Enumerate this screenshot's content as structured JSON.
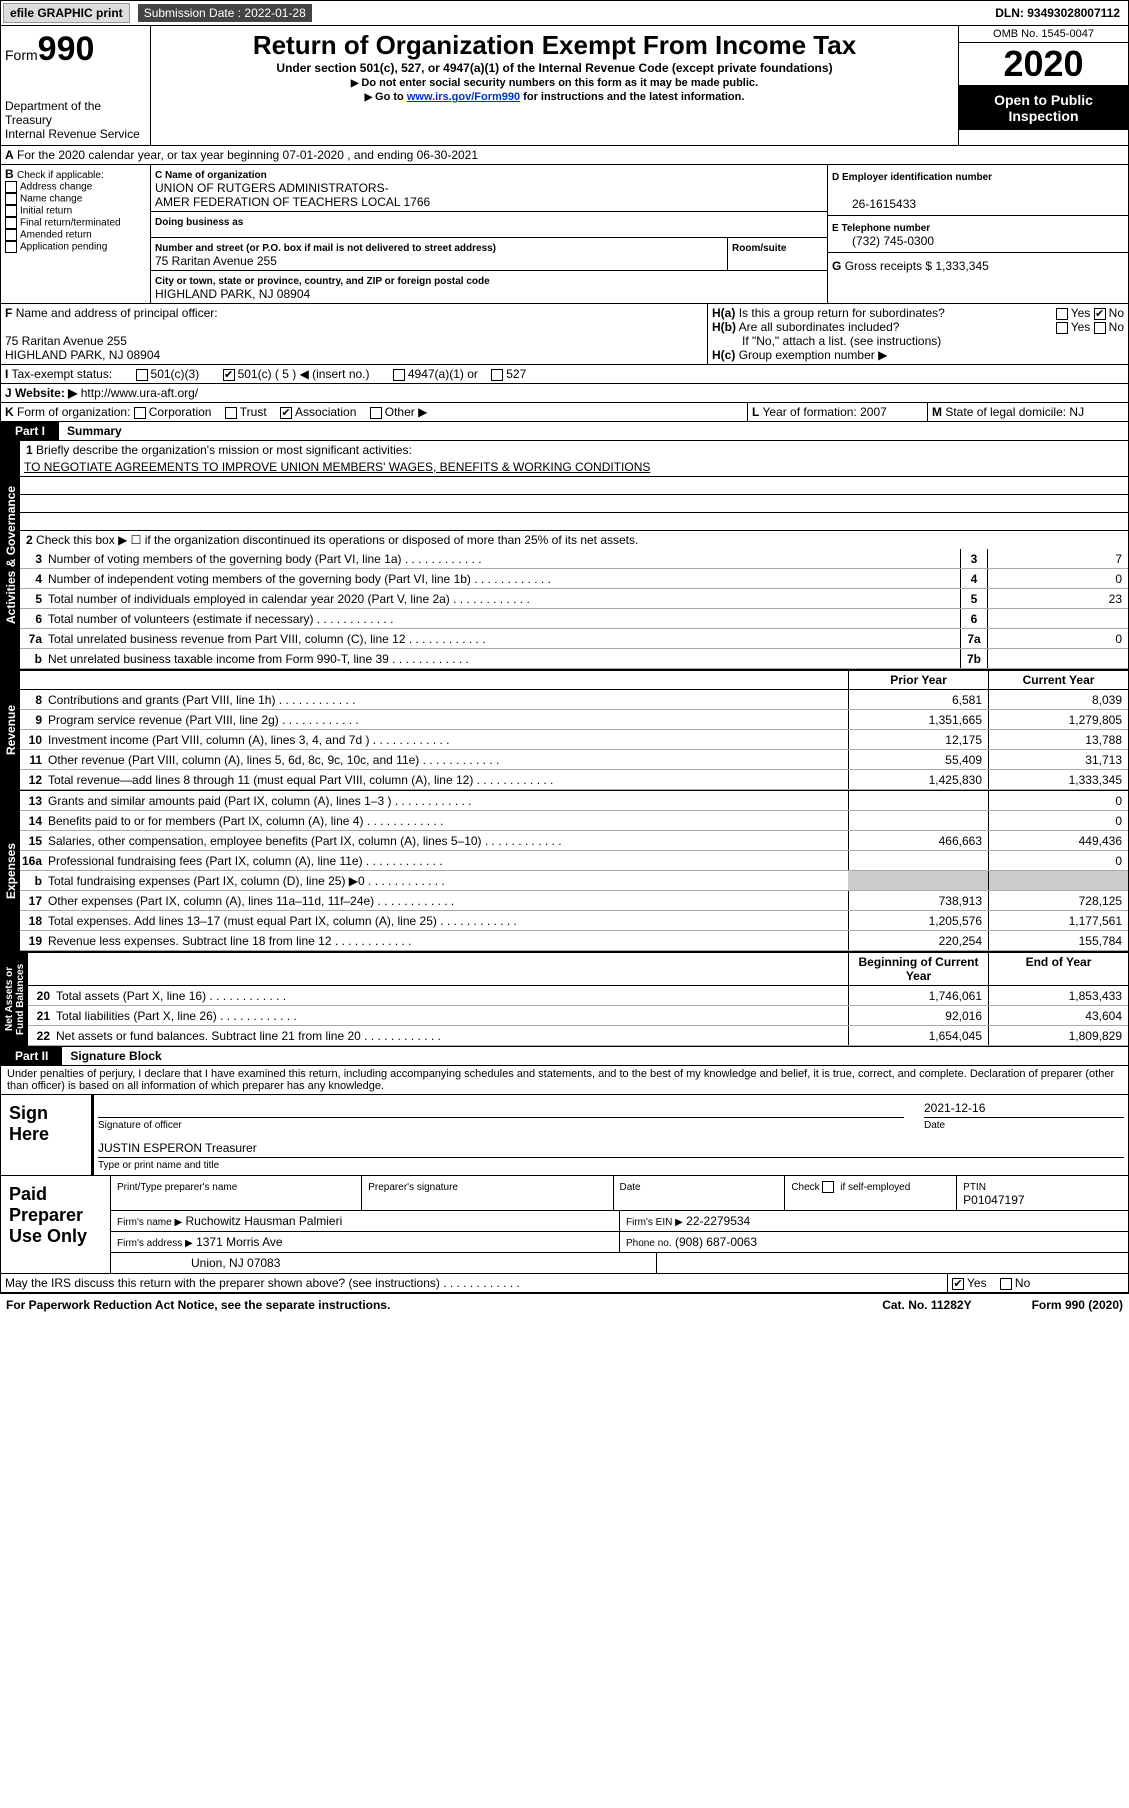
{
  "topbar": {
    "efile": "efile GRAPHIC print",
    "submission_label": "Submission Date : 2022-01-28",
    "dln": "DLN: 93493028007112"
  },
  "header": {
    "form_text": "Form",
    "form_num": "990",
    "dept": "Department of the Treasury",
    "irs": "Internal Revenue Service",
    "title": "Return of Organization Exempt From Income Tax",
    "subtitle": "Under section 501(c), 527, or 4947(a)(1) of the Internal Revenue Code (except private foundations)",
    "instr1": "Do not enter social security numbers on this form as it may be made public.",
    "instr2_pre": "Go to ",
    "instr2_link": "www.irs.gov/Form990",
    "instr2_post": " for instructions and the latest information.",
    "omb": "OMB No. 1545-0047",
    "year": "2020",
    "open1": "Open to Public",
    "open2": "Inspection"
  },
  "A": {
    "text": "For the 2020 calendar year, or tax year beginning 07-01-2020    , and ending 06-30-2021"
  },
  "B": {
    "label": "Check if applicable:",
    "items": [
      "Address change",
      "Name change",
      "Initial return",
      "Final return/terminated",
      "Amended return",
      "Application pending"
    ]
  },
  "C": {
    "label": "Name of organization",
    "name": "UNION OF RUTGERS ADMINISTRATORS-\nAMER FEDERATION OF TEACHERS LOCAL 1766",
    "dba_label": "Doing business as",
    "street_label": "Number and street (or P.O. box if mail is not delivered to street address)",
    "room_label": "Room/suite",
    "street": "75 Raritan Avenue 255",
    "city_label": "City or town, state or province, country, and ZIP or foreign postal code",
    "city": "HIGHLAND PARK, NJ  08904"
  },
  "D": {
    "label": "Employer identification number",
    "value": "26-1615433"
  },
  "E": {
    "label": "Telephone number",
    "value": "(732) 745-0300"
  },
  "G": {
    "label": "Gross receipts $",
    "value": "1,333,345"
  },
  "F": {
    "label": "Name and address of principal officer:",
    "addr1": "75 Raritan Avenue 255",
    "addr2": "HIGHLAND PARK, NJ  08904"
  },
  "H": {
    "a": "Is this a group return for subordinates?",
    "b": "Are all subordinates included?",
    "note": "If \"No,\" attach a list. (see instructions)",
    "c": "Group exemption number ▶"
  },
  "I": {
    "label": "Tax-exempt status:",
    "opts": [
      "501(c)(3)",
      "501(c) ( 5 ) ◀ (insert no.)",
      "4947(a)(1) or",
      "527"
    ]
  },
  "J": {
    "label": "Website: ▶",
    "value": "http://www.ura-aft.org/"
  },
  "K": {
    "label": "Form of organization:",
    "opts": [
      "Corporation",
      "Trust",
      "Association",
      "Other ▶"
    ]
  },
  "L": {
    "label": "Year of formation:",
    "value": "2007"
  },
  "M": {
    "label": "State of legal domicile:",
    "value": "NJ"
  },
  "part1": {
    "label": "Part I",
    "title": "Summary"
  },
  "summary": {
    "l1_label": "Briefly describe the organization's mission or most significant activities:",
    "l1_text": "TO NEGOTIATE AGREEMENTS TO IMPROVE UNION MEMBERS' WAGES, BENEFITS & WORKING CONDITIONS",
    "l2": "Check this box ▶ ☐  if the organization discontinued its operations or disposed of more than 25% of its net assets.",
    "rows_gov": [
      {
        "n": "3",
        "t": "Number of voting members of the governing body (Part VI, line 1a)",
        "b": "3",
        "v": "7"
      },
      {
        "n": "4",
        "t": "Number of independent voting members of the governing body (Part VI, line 1b)",
        "b": "4",
        "v": "0"
      },
      {
        "n": "5",
        "t": "Total number of individuals employed in calendar year 2020 (Part V, line 2a)",
        "b": "5",
        "v": "23"
      },
      {
        "n": "6",
        "t": "Total number of volunteers (estimate if necessary)",
        "b": "6",
        "v": ""
      },
      {
        "n": "7a",
        "t": "Total unrelated business revenue from Part VIII, column (C), line 12",
        "b": "7a",
        "v": "0"
      },
      {
        "n": "b",
        "t": "Net unrelated business taxable income from Form 990-T, line 39",
        "b": "7b",
        "v": ""
      }
    ],
    "col_prior": "Prior Year",
    "col_current": "Current Year",
    "rev": [
      {
        "n": "8",
        "t": "Contributions and grants (Part VIII, line 1h)",
        "p": "6,581",
        "c": "8,039"
      },
      {
        "n": "9",
        "t": "Program service revenue (Part VIII, line 2g)",
        "p": "1,351,665",
        "c": "1,279,805"
      },
      {
        "n": "10",
        "t": "Investment income (Part VIII, column (A), lines 3, 4, and 7d )",
        "p": "12,175",
        "c": "13,788"
      },
      {
        "n": "11",
        "t": "Other revenue (Part VIII, column (A), lines 5, 6d, 8c, 9c, 10c, and 11e)",
        "p": "55,409",
        "c": "31,713"
      },
      {
        "n": "12",
        "t": "Total revenue—add lines 8 through 11 (must equal Part VIII, column (A), line 12)",
        "p": "1,425,830",
        "c": "1,333,345"
      }
    ],
    "exp": [
      {
        "n": "13",
        "t": "Grants and similar amounts paid (Part IX, column (A), lines 1–3 )",
        "p": "",
        "c": "0"
      },
      {
        "n": "14",
        "t": "Benefits paid to or for members (Part IX, column (A), line 4)",
        "p": "",
        "c": "0"
      },
      {
        "n": "15",
        "t": "Salaries, other compensation, employee benefits (Part IX, column (A), lines 5–10)",
        "p": "466,663",
        "c": "449,436"
      },
      {
        "n": "16a",
        "t": "Professional fundraising fees (Part IX, column (A), line 11e)",
        "p": "",
        "c": "0"
      },
      {
        "n": "b",
        "t": "Total fundraising expenses (Part IX, column (D), line 25) ▶0",
        "p": "",
        "c": "",
        "shade": true
      },
      {
        "n": "17",
        "t": "Other expenses (Part IX, column (A), lines 11a–11d, 11f–24e)",
        "p": "738,913",
        "c": "728,125"
      },
      {
        "n": "18",
        "t": "Total expenses. Add lines 13–17 (must equal Part IX, column (A), line 25)",
        "p": "1,205,576",
        "c": "1,177,561"
      },
      {
        "n": "19",
        "t": "Revenue less expenses. Subtract line 18 from line 12",
        "p": "220,254",
        "c": "155,784"
      }
    ],
    "col_begin": "Beginning of Current Year",
    "col_end": "End of Year",
    "net": [
      {
        "n": "20",
        "t": "Total assets (Part X, line 16)",
        "p": "1,746,061",
        "c": "1,853,433"
      },
      {
        "n": "21",
        "t": "Total liabilities (Part X, line 26)",
        "p": "92,016",
        "c": "43,604"
      },
      {
        "n": "22",
        "t": "Net assets or fund balances. Subtract line 21 from line 20",
        "p": "1,654,045",
        "c": "1,809,829"
      }
    ]
  },
  "part2": {
    "label": "Part II",
    "title": "Signature Block",
    "decl": "Under penalties of perjury, I declare that I have examined this return, including accompanying schedules and statements, and to the best of my knowledge and belief, it is true, correct, and complete. Declaration of preparer (other than officer) is based on all information of which preparer has any knowledge."
  },
  "sign": {
    "here": "Sign Here",
    "sig_of": "Signature of officer",
    "date_label": "Date",
    "date": "2021-12-16",
    "name": "JUSTIN ESPERON  Treasurer",
    "type_label": "Type or print name and title"
  },
  "prep": {
    "use": "Paid Preparer Use Only",
    "h1": "Print/Type preparer's name",
    "h2": "Preparer's signature",
    "h3": "Date",
    "h4_pre": "Check",
    "h4_post": "if self-employed",
    "h5": "PTIN",
    "ptin": "P01047197",
    "firm_label": "Firm's name  ▶",
    "firm": "Ruchowitz Hausman Palmieri",
    "ein_label": "Firm's EIN ▶",
    "ein": "22-2279534",
    "addr_label": "Firm's address ▶",
    "addr1": "1371 Morris Ave",
    "addr2": "Union, NJ  07083",
    "phone_label": "Phone no.",
    "phone": "(908) 687-0063",
    "discuss": "May the IRS discuss this return with the preparer shown above? (see instructions)"
  },
  "footer": {
    "pra": "For Paperwork Reduction Act Notice, see the separate instructions.",
    "cat": "Cat. No. 11282Y",
    "form": "Form 990 (2020)"
  }
}
